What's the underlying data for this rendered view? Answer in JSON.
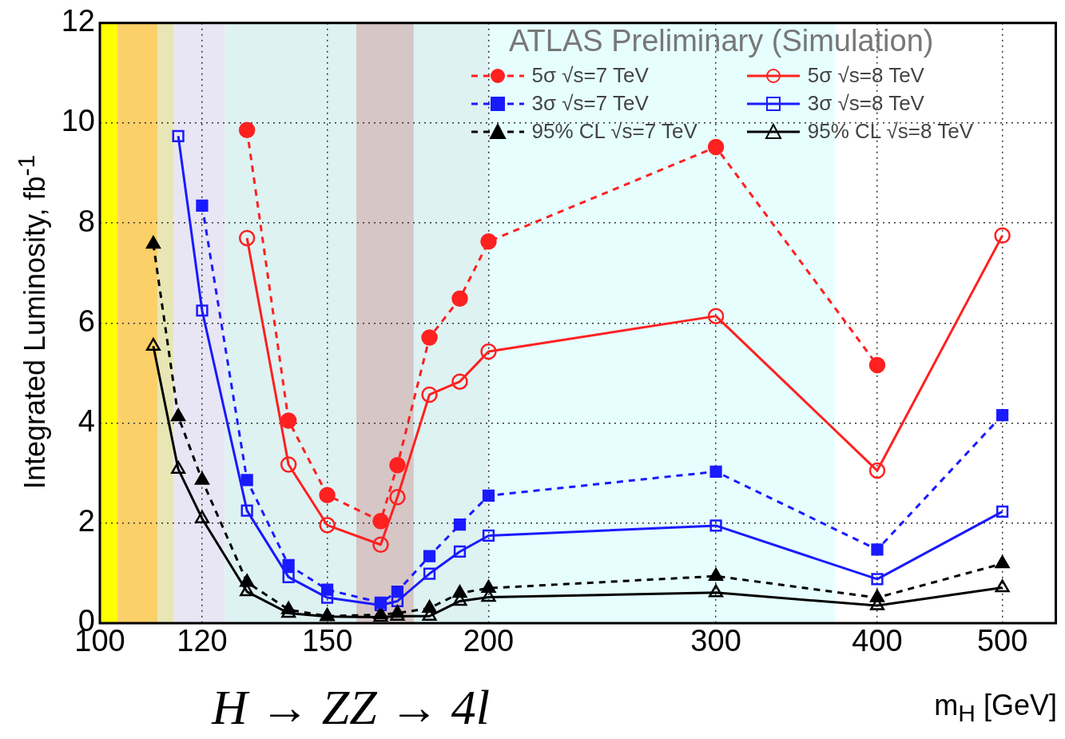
{
  "chart_data": {
    "type": "line",
    "title": "H → ZZ → 4l",
    "legend_title": "ATLAS Preliminary (Simulation)",
    "xlabel": "m$_{H}$ [GeV]",
    "ylabel": "Integrated Luminosity, fb$^{-1}$",
    "x": [
      110,
      115,
      120,
      130,
      140,
      150,
      165,
      170,
      180,
      190,
      200,
      300,
      400,
      500
    ],
    "series": [
      {
        "name": "5σ √s=7 TeV",
        "color": "#ff2020",
        "marker": "circle",
        "line_style": "dashed",
        "values": [
          null,
          null,
          null,
          9.86,
          4.05,
          2.56,
          2.04,
          3.16,
          5.71,
          6.49,
          7.63,
          9.52,
          5.16,
          null
        ]
      },
      {
        "name": "3σ √s=7 TeV",
        "color": "#1a1aff",
        "marker": "square",
        "line_style": "dashed",
        "values": [
          null,
          null,
          8.35,
          2.86,
          1.16,
          0.67,
          0.41,
          0.63,
          1.34,
          1.97,
          2.55,
          3.03,
          1.47,
          4.16
        ]
      },
      {
        "name": "95% CL √s=7 TeV",
        "color": "#000000",
        "marker": "triangle",
        "line_style": "dashed",
        "values": [
          7.58,
          4.13,
          2.86,
          0.82,
          0.27,
          0.14,
          0.17,
          0.2,
          0.3,
          0.6,
          0.7,
          0.94,
          0.51,
          1.19
        ]
      },
      {
        "name": "5σ √s=8 TeV",
        "color": "#ff2020",
        "marker": "circle",
        "line_style": "solid",
        "values": [
          null,
          null,
          null,
          7.7,
          3.17,
          1.96,
          1.57,
          2.52,
          4.57,
          4.83,
          5.43,
          6.14,
          3.05,
          7.75
        ]
      },
      {
        "name": "3σ √s=8 TeV",
        "color": "#1a1aff",
        "marker": "square",
        "line_style": "solid",
        "values": [
          null,
          9.74,
          6.25,
          2.25,
          0.92,
          0.51,
          0.36,
          0.44,
          0.99,
          1.43,
          1.75,
          1.95,
          0.88,
          2.23
        ]
      },
      {
        "name": "95% CL √s=8 TeV",
        "color": "#000000",
        "marker": "triangle",
        "line_style": "solid",
        "values": [
          5.54,
          3.08,
          2.09,
          0.63,
          0.2,
          0.13,
          0.12,
          0.14,
          0.14,
          0.44,
          0.52,
          0.61,
          0.35,
          0.71
        ]
      }
    ],
    "log": "x",
    "xlim": [
      100,
      550
    ],
    "xticks": [
      100,
      120,
      150,
      200,
      300,
      400,
      500
    ],
    "ylim": [
      0,
      12
    ],
    "yticks": [
      0,
      2,
      4,
      6,
      8,
      10,
      12
    ],
    "bands": [
      {
        "axis": "x",
        "from": 100,
        "to": 103.2,
        "color": "#ffff00"
      },
      {
        "axis": "x",
        "from": 103.2,
        "to": 110.8,
        "color": "#fcd068"
      },
      {
        "axis": "x",
        "from": 110.8,
        "to": 114.1,
        "color": "#e8e6b4"
      },
      {
        "axis": "x",
        "from": 114.1,
        "to": 125,
        "color": "#e8e6f4"
      },
      {
        "axis": "x",
        "from": 125,
        "to": 200,
        "color": "#def2f2"
      },
      {
        "axis": "x",
        "from": 200,
        "to": 371,
        "color": "#e6fefe"
      },
      {
        "axis": "x",
        "from": 158,
        "to": 175,
        "color": "#d6c6c6"
      }
    ],
    "grid": true,
    "legend": "top right"
  }
}
